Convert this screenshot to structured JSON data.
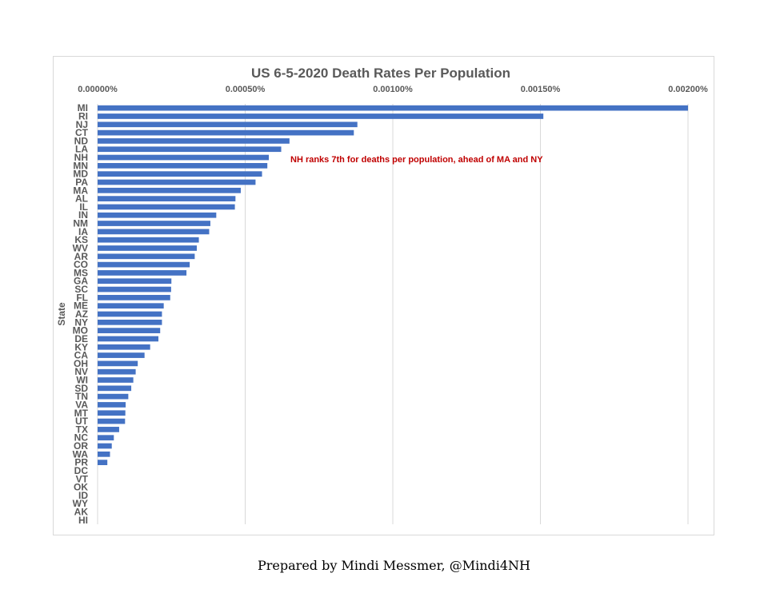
{
  "chart_data": {
    "type": "bar",
    "orientation": "horizontal",
    "title": "US 6-5-2020  Death Rates Per Population",
    "ylabel": "State",
    "xlabel": "",
    "xlim": [
      0,
      0.002
    ],
    "x_ticks": [
      0,
      0.0005,
      0.001,
      0.0015,
      0.002
    ],
    "x_tick_labels": [
      "0.00000%",
      "0.00050%",
      "0.00100%",
      "0.00150%",
      "0.00200%"
    ],
    "x_axis_position": "top",
    "grid": true,
    "bar_color": "#4472c4",
    "annotation": "NH ranks 7th for deaths per population, ahead of MA and NY",
    "annotation_color": "#c00000",
    "categories": [
      "MI",
      "RI",
      "NJ",
      "CT",
      "ND",
      "LA",
      "NH",
      "MN",
      "MD",
      "PA",
      "MA",
      "AL",
      "IL",
      "IN",
      "NM",
      "IA",
      "KS",
      "WV",
      "AR",
      "CO",
      "MS",
      "GA",
      "SC",
      "FL",
      "ME",
      "AZ",
      "NY",
      "MO",
      "DE",
      "KY",
      "CA",
      "OH",
      "NV",
      "WI",
      "SD",
      "TN",
      "VA",
      "MT",
      "UT",
      "TX",
      "NC",
      "OR",
      "WA",
      "PR",
      "DC",
      "VT",
      "OK",
      "ID",
      "WY",
      "AK",
      "HI"
    ],
    "values": [
      0.002,
      0.00151,
      0.00088,
      0.000868,
      0.00065,
      0.000622,
      0.00058,
      0.000575,
      0.000557,
      0.000535,
      0.000485,
      0.000467,
      0.000465,
      0.000402,
      0.000382,
      0.000378,
      0.000343,
      0.000336,
      0.000329,
      0.000312,
      0.000301,
      0.00025,
      0.000249,
      0.000246,
      0.000224,
      0.000218,
      0.000218,
      0.000212,
      0.000206,
      0.000178,
      0.000159,
      0.000136,
      0.000129,
      0.000121,
      0.000114,
      0.000104,
      9.5e-05,
      9.4e-05,
      9.3e-05,
      7.3e-05,
      5.5e-05,
      4.8e-05,
      4.2e-05,
      3.3e-05,
      0,
      0,
      0,
      0,
      0,
      0,
      0
    ]
  },
  "footer": {
    "caption": "Prepared by Mindi Messmer, @Mindi4NH"
  }
}
